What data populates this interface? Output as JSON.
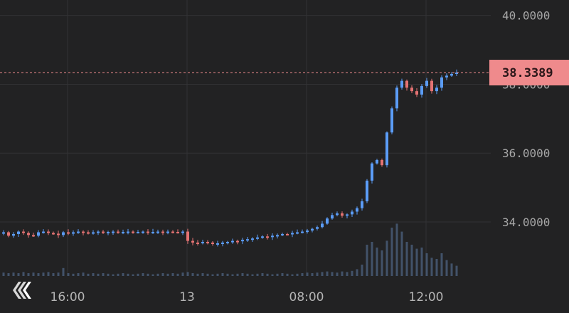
{
  "chart_data": {
    "type": "candlestick",
    "y_ticks": [
      "40.0000",
      "38.0000",
      "36.0000",
      "34.0000"
    ],
    "y_tick_values": [
      40,
      38,
      36,
      34
    ],
    "ylim": [
      32.0,
      40.2
    ],
    "x_ticks": [
      "16:00",
      "13",
      "08:00",
      "12:00"
    ],
    "x_tick_index": [
      13,
      37,
      61,
      85
    ],
    "last_price": 38.3389,
    "last_price_label": "38.3389",
    "grid": true,
    "colors": {
      "up": "#5b9cf6",
      "down": "#e57373",
      "grid": "#323234",
      "price_line": "#ef8a8c",
      "price_label_bg": "#ef8a8c",
      "volume": "#4b5f7a"
    },
    "close": [
      33.7,
      33.6,
      33.65,
      33.72,
      33.68,
      33.62,
      33.6,
      33.7,
      33.72,
      33.68,
      33.66,
      33.62,
      33.7,
      33.66,
      33.7,
      33.72,
      33.7,
      33.68,
      33.7,
      33.72,
      33.7,
      33.71,
      33.72,
      33.7,
      33.71,
      33.72,
      33.7,
      33.71,
      33.72,
      33.7,
      33.71,
      33.72,
      33.7,
      33.72,
      33.71,
      33.7,
      33.72,
      33.45,
      33.4,
      33.38,
      33.42,
      33.4,
      33.36,
      33.38,
      33.4,
      33.42,
      33.45,
      33.44,
      33.48,
      33.5,
      33.52,
      33.55,
      33.58,
      33.56,
      33.6,
      33.62,
      33.65,
      33.64,
      33.68,
      33.7,
      33.72,
      33.75,
      33.8,
      33.85,
      33.95,
      34.1,
      34.2,
      34.25,
      34.18,
      34.22,
      34.3,
      34.4,
      34.6,
      35.2,
      35.7,
      35.8,
      35.65,
      36.6,
      37.3,
      37.9,
      38.1,
      37.9,
      37.8,
      37.7,
      37.95,
      38.1,
      37.8,
      37.9,
      38.2,
      38.25,
      38.3,
      38.34
    ],
    "volume": [
      0.06,
      0.05,
      0.06,
      0.05,
      0.07,
      0.05,
      0.06,
      0.05,
      0.06,
      0.07,
      0.05,
      0.06,
      0.14,
      0.05,
      0.04,
      0.05,
      0.06,
      0.04,
      0.05,
      0.04,
      0.05,
      0.04,
      0.03,
      0.04,
      0.05,
      0.04,
      0.03,
      0.04,
      0.05,
      0.04,
      0.03,
      0.04,
      0.05,
      0.04,
      0.05,
      0.04,
      0.06,
      0.07,
      0.05,
      0.04,
      0.05,
      0.04,
      0.03,
      0.04,
      0.05,
      0.04,
      0.03,
      0.04,
      0.05,
      0.04,
      0.03,
      0.04,
      0.05,
      0.04,
      0.03,
      0.04,
      0.05,
      0.04,
      0.03,
      0.04,
      0.05,
      0.06,
      0.05,
      0.06,
      0.07,
      0.08,
      0.07,
      0.06,
      0.08,
      0.07,
      0.09,
      0.12,
      0.2,
      0.55,
      0.6,
      0.5,
      0.45,
      0.62,
      0.85,
      0.92,
      0.78,
      0.6,
      0.55,
      0.48,
      0.5,
      0.4,
      0.32,
      0.3,
      0.4,
      0.28,
      0.22,
      0.18
    ]
  },
  "logo": {
    "name": "chevron-logo-icon"
  }
}
